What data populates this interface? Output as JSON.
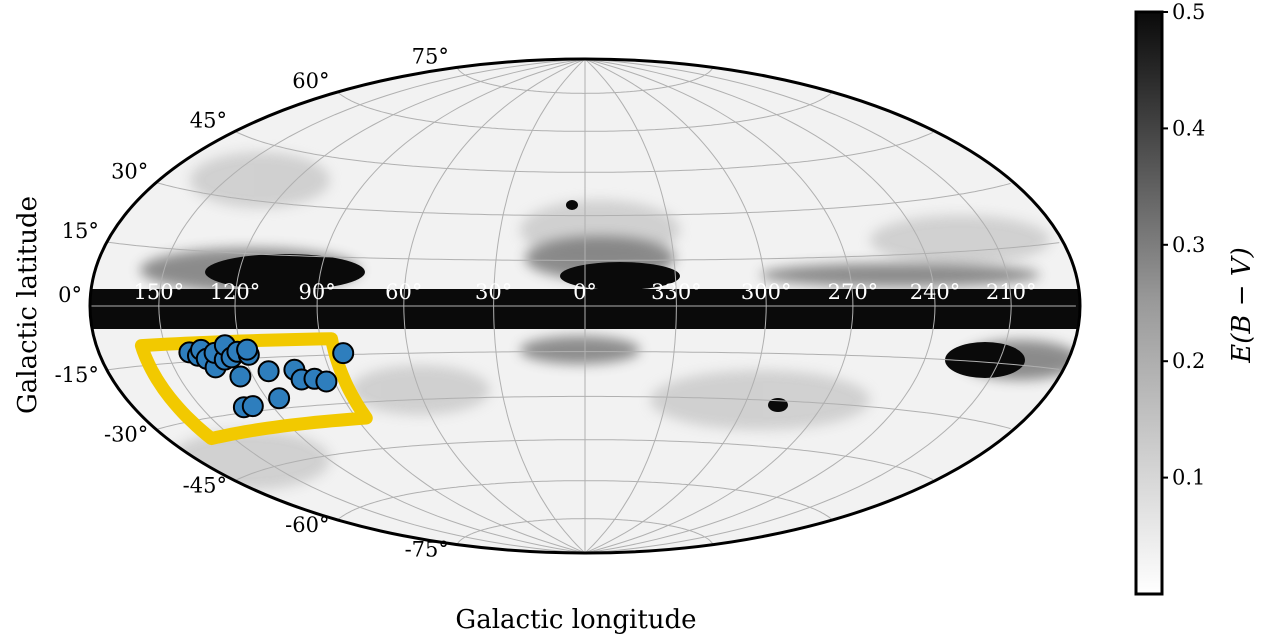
{
  "chart_data": {
    "type": "scatter",
    "projection": "aitoff",
    "coordinate_system": "galactic",
    "background_map": "dust reddening E(B-V), grayscale",
    "xlabel": "Galactic longitude",
    "ylabel": "Galactic latitude",
    "longitude_ticks": [
      "150°",
      "120°",
      "90°",
      "60°",
      "30°",
      "0°",
      "330°",
      "300°",
      "270°",
      "240°",
      "210°"
    ],
    "latitude_ticks": [
      "75°",
      "60°",
      "45°",
      "30°",
      "15°",
      "0°",
      "-15°",
      "-30°",
      "-45°",
      "-60°",
      "-75°"
    ],
    "grid": true,
    "colorbar": {
      "label": "E(B − V)",
      "ticks": [
        "0.1",
        "0.2",
        "0.3",
        "0.4",
        "0.5"
      ],
      "range": [
        0,
        0.5
      ],
      "colormap": "Greys",
      "location": "right"
    },
    "region_outline": {
      "color": "#f2c900",
      "corners": [
        {
          "l": 160,
          "b": -10
        },
        {
          "l": 86,
          "b": -10
        },
        {
          "l": 86,
          "b": -35
        },
        {
          "l": 160,
          "b": -35
        }
      ]
    },
    "points": [
      {
        "l": 141,
        "b": -12.5
      },
      {
        "l": 138,
        "b": -13.5
      },
      {
        "l": 136,
        "b": -12
      },
      {
        "l": 135,
        "b": -14.5
      },
      {
        "l": 133,
        "b": -17
      },
      {
        "l": 131,
        "b": -13
      },
      {
        "l": 128,
        "b": -15
      },
      {
        "l": 126,
        "b": -11
      },
      {
        "l": 125,
        "b": -14.5
      },
      {
        "l": 122,
        "b": -13
      },
      {
        "l": 118,
        "b": -14
      },
      {
        "l": 118,
        "b": -12.5
      },
      {
        "l": 125,
        "b": -20
      },
      {
        "l": 113,
        "b": -19
      },
      {
        "l": 103,
        "b": -19
      },
      {
        "l": 102,
        "b": -22
      },
      {
        "l": 97,
        "b": -22
      },
      {
        "l": 93,
        "b": -23
      },
      {
        "l": 83,
        "b": -14.5
      },
      {
        "l": 115,
        "b": -27
      },
      {
        "l": 132,
        "b": -28.5
      },
      {
        "l": 128,
        "b": -28.5
      }
    ],
    "point_color": "#2e7ebd"
  }
}
